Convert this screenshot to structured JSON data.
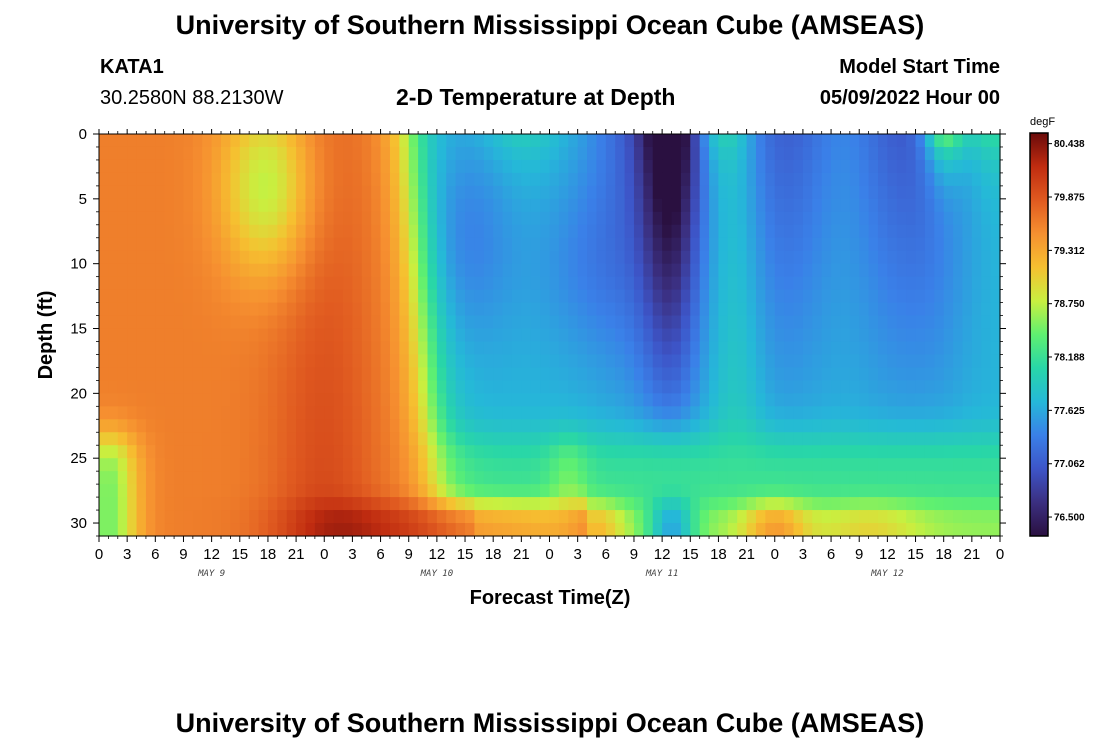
{
  "header": {
    "title": "University of Southern Mississippi Ocean Cube (AMSEAS)",
    "station": "KATA1",
    "coords": "30.2580N  88.2130W",
    "plot_title": "2-D Temperature at Depth",
    "model_label": "Model Start Time",
    "model_time": "05/09/2022 Hour 00"
  },
  "footer": {
    "title": "University of Southern Mississippi Ocean Cube (AMSEAS)"
  },
  "chart_data": {
    "type": "heatmap",
    "title": "2-D Temperature at Depth",
    "xlabel": "Forecast Time(Z)",
    "ylabel": "Depth (ft)",
    "x_ticks": [
      "0",
      "3",
      "6",
      "9",
      "12",
      "15",
      "18",
      "21",
      "0",
      "3",
      "6",
      "9",
      "12",
      "15",
      "18",
      "21",
      "0",
      "3",
      "6",
      "9",
      "12",
      "15",
      "18",
      "21",
      "0",
      "3",
      "6",
      "9",
      "12",
      "15",
      "18",
      "21",
      "0"
    ],
    "day_labels": [
      "MAY 9",
      "MAY 10",
      "MAY 11",
      "MAY 12"
    ],
    "y_ticks": [
      0,
      5,
      10,
      15,
      20,
      25,
      30
    ],
    "ylim": [
      0,
      31
    ],
    "x_range_hours": [
      0,
      96
    ],
    "colorbar": {
      "unit": "degF",
      "labels": [
        "80.438",
        "79.875",
        "79.312",
        "78.750",
        "78.188",
        "77.625",
        "77.062",
        "76.500"
      ],
      "range": [
        76.3,
        80.55
      ],
      "colors": [
        "#2a1040",
        "#3b2f80",
        "#3d55c8",
        "#3a80e8",
        "#25b8d8",
        "#28d6a8",
        "#5ff070",
        "#c8f040",
        "#f6c030",
        "#f69030",
        "#e05a20",
        "#c02c10",
        "#6a0a0a"
      ]
    }
  }
}
